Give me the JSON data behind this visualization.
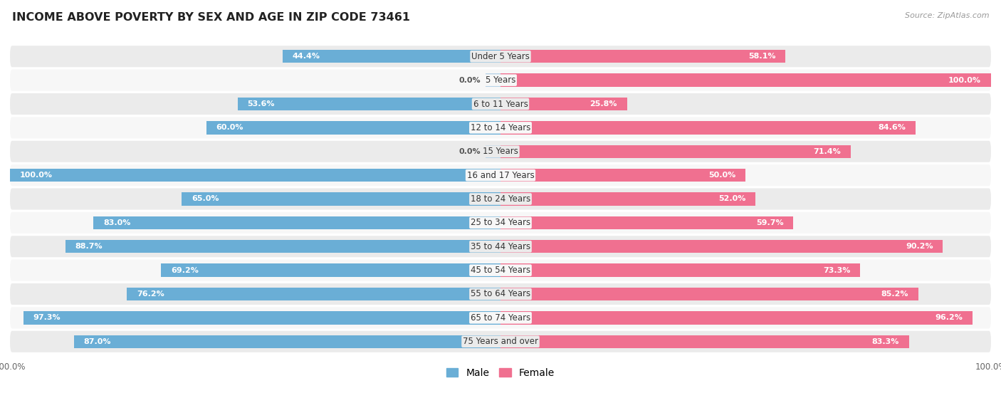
{
  "title": "INCOME ABOVE POVERTY BY SEX AND AGE IN ZIP CODE 73461",
  "source": "Source: ZipAtlas.com",
  "categories": [
    "Under 5 Years",
    "5 Years",
    "6 to 11 Years",
    "12 to 14 Years",
    "15 Years",
    "16 and 17 Years",
    "18 to 24 Years",
    "25 to 34 Years",
    "35 to 44 Years",
    "45 to 54 Years",
    "55 to 64 Years",
    "65 to 74 Years",
    "75 Years and over"
  ],
  "male_values": [
    44.4,
    0.0,
    53.6,
    60.0,
    0.0,
    100.0,
    65.0,
    83.0,
    88.7,
    69.2,
    76.2,
    97.3,
    87.0
  ],
  "female_values": [
    58.1,
    100.0,
    25.8,
    84.6,
    71.4,
    50.0,
    52.0,
    59.7,
    90.2,
    73.3,
    85.2,
    96.2,
    83.3
  ],
  "male_color": "#6aaed6",
  "female_color": "#f07090",
  "male_color_light": "#b8d4e8",
  "female_color_light": "#f5b8c8",
  "male_label": "Male",
  "female_label": "Female",
  "bg_color": "#ffffff",
  "row_bg_even": "#ebebeb",
  "row_bg_odd": "#f7f7f7",
  "max_value": 100.0,
  "title_fontsize": 11.5,
  "label_fontsize": 8.5,
  "value_fontsize": 8.0,
  "bar_height": 0.55,
  "legend_fontsize": 10
}
